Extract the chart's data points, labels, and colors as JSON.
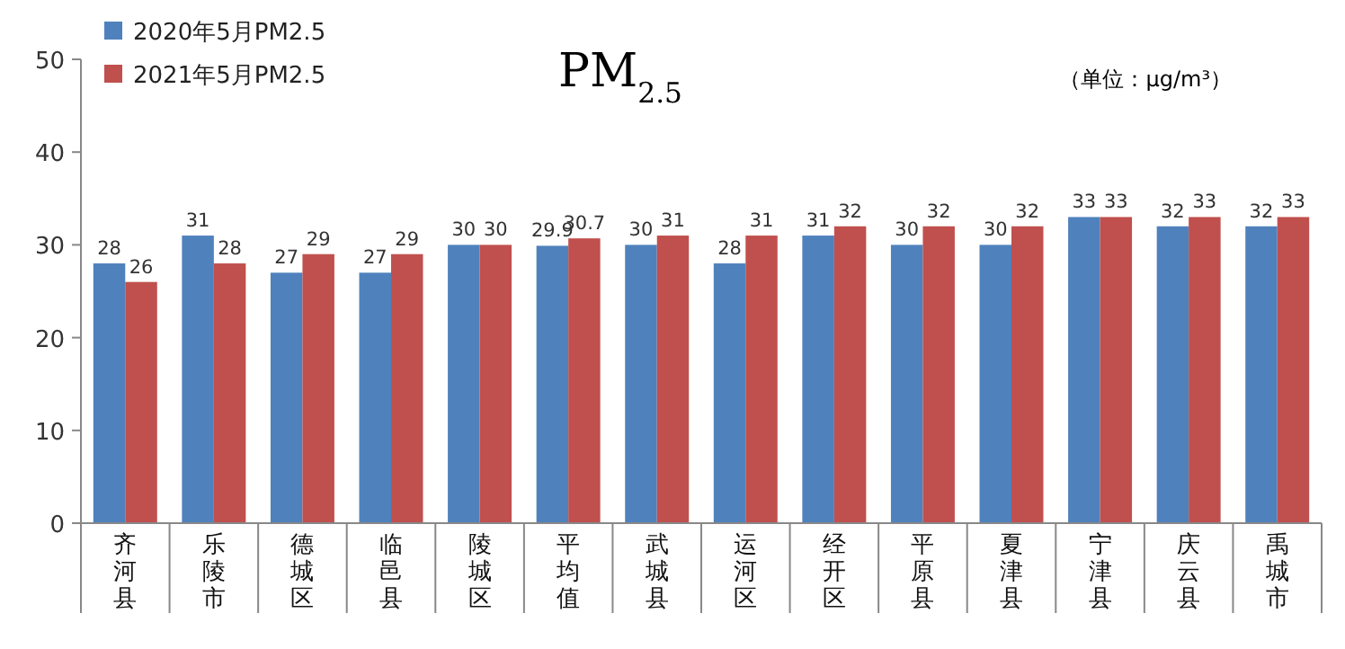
{
  "chart_data": {
    "type": "bar",
    "title": "PM$_{2.5}$",
    "annotations": [
      "（单位：μg/m³）"
    ],
    "categories": [
      "齐河县",
      "乐陵市",
      "德城区",
      "临邑县",
      "陵城区",
      "平均值",
      "武城县",
      "运河区",
      "经开区",
      "平原县",
      "夏津县",
      "宁津县",
      "庆云县",
      "禹城市"
    ],
    "series": [
      {
        "name": "2020年5月PM2.5",
        "color": "#4f81bd",
        "values": [
          28,
          31,
          27,
          27,
          30,
          29.9,
          30,
          28,
          31,
          30,
          30,
          33,
          32,
          32
        ]
      },
      {
        "name": "2021年5月PM2.5",
        "color": "#c0504d",
        "values": [
          26,
          28,
          29,
          29,
          30,
          30.7,
          31,
          31,
          32,
          32,
          32,
          33,
          33,
          33
        ]
      }
    ],
    "ylim": [
      0,
      50
    ],
    "yticks": [
      0,
      10,
      20,
      30,
      40,
      50
    ],
    "grid": false,
    "legend": "top left",
    "data_labels": true
  }
}
